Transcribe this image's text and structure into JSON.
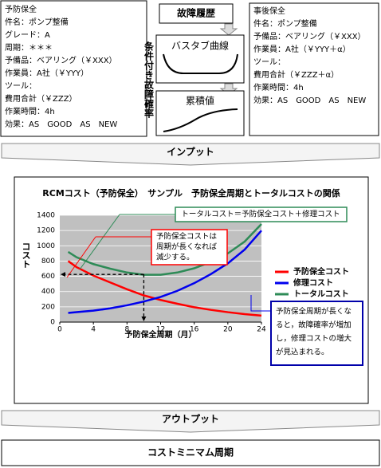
{
  "preventive_box": {
    "lines": [
      "予防保全",
      "件名：ポンプ整備",
      "グレード：A",
      "周期：＊＊＊",
      "予備品：ベアリング（￥XXX）",
      "作業員：A社（￥YYY）",
      "ツール：",
      "費用合計（￥ZZZ）",
      "作業時間：4h",
      "効果：AS　GOOD　AS　NEW"
    ]
  },
  "corrective_box": {
    "lines": [
      "事後保全",
      "件名：ポンプ整備",
      "予備品：ベアリング（￥XXX）",
      "作業員：A社（￥YYY＋α）",
      "ツール：",
      "費用合計（￥ZZZ＋α）",
      "作業時間：4h",
      "効果：AS　GOOD　AS　NEW"
    ]
  },
  "failure": {
    "title": "故障履歴",
    "vertical_label": "条件付き故障確率",
    "bathtub": "バスタブ曲線",
    "cumulative": "累積値"
  },
  "flow": {
    "input": "インプット",
    "output": "アウトプット",
    "result": "コストミニマム周期"
  },
  "chart_data": {
    "type": "line",
    "title": "RCMコスト（予防保全）　サンプル　予防保全周期とトータルコストの関係",
    "x_label": "予防保全周期（月）",
    "y_label": "コスト",
    "x": [
      1,
      2,
      4,
      6,
      8,
      10,
      12,
      14,
      16,
      18,
      20,
      22,
      24
    ],
    "series": [
      {
        "name": "予防保全コスト",
        "color": "#ff0000",
        "values": [
          800,
          720,
          610,
          520,
          430,
          350,
          290,
          240,
          195,
          160,
          130,
          105,
          85
        ]
      },
      {
        "name": "修理コスト",
        "color": "#0000ee",
        "values": [
          120,
          130,
          150,
          180,
          220,
          270,
          330,
          410,
          510,
          630,
          770,
          950,
          1200
        ]
      },
      {
        "name": "トータルコスト",
        "color": "#2e8b57",
        "values": [
          920,
          850,
          760,
          700,
          650,
          620,
          620,
          650,
          705,
          790,
          900,
          1055,
          1285
        ]
      }
    ],
    "xlim": [
      0,
      24
    ],
    "xticks": [
      0,
      4,
      8,
      12,
      16,
      20,
      24
    ],
    "ylim": [
      0,
      1400
    ],
    "yticks": [
      0,
      200,
      400,
      600,
      800,
      1000,
      1200,
      1400
    ],
    "grid": true,
    "annotations": {
      "total": [
        "トータルコスト＝予防保全コスト＋修理コスト"
      ],
      "preventive": [
        "予防保全コストは",
        "周期が長くなれば",
        "減少する。"
      ],
      "repair": [
        "予防保全周期が長くな",
        "ると，故障確率が増加",
        "し，修理コストの増大",
        "が見込まれる。"
      ]
    }
  }
}
